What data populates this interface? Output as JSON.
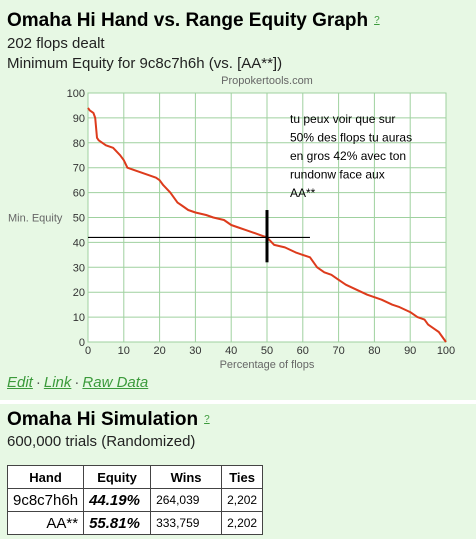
{
  "graph_panel": {
    "title": "Omaha Hi Hand vs. Range Equity Graph",
    "help_label": "?",
    "flops_dealt": "202 flops dealt",
    "subtitle": "Minimum Equity for 9c8c7h6h (vs. [AA**])",
    "links": {
      "edit": "Edit",
      "link": "Link",
      "raw_data": "Raw Data",
      "separator": "·"
    }
  },
  "chart_data": {
    "type": "line",
    "watermark": "Propokertools.com",
    "xlabel": "Percentage of flops",
    "ylabel": "Min. Equity",
    "xlim": [
      0,
      100
    ],
    "ylim": [
      0,
      100
    ],
    "xticks": [
      0,
      10,
      20,
      30,
      40,
      50,
      60,
      70,
      80,
      90,
      100
    ],
    "yticks": [
      0,
      10,
      20,
      30,
      40,
      50,
      60,
      70,
      80,
      90,
      100
    ],
    "grid": true,
    "line_color": "#dd3b1c",
    "series": [
      {
        "x": [
          0,
          0.5,
          1.5,
          2,
          2.5,
          3,
          5,
          7,
          9,
          10,
          11,
          13,
          15,
          17,
          19,
          20,
          21,
          23,
          25,
          26,
          27,
          28,
          30,
          33,
          35,
          38,
          40,
          42,
          44,
          46,
          48,
          50,
          52,
          55,
          58,
          60,
          62,
          64,
          66,
          68,
          70,
          72,
          75,
          78,
          80,
          82,
          85,
          87,
          90,
          92,
          94,
          95,
          96,
          97,
          98,
          99,
          100
        ],
        "y": [
          94,
          93,
          92,
          90,
          82,
          81,
          79,
          78,
          75,
          73,
          70,
          69,
          68,
          67,
          66,
          65,
          63,
          60,
          56,
          55,
          54,
          53,
          52,
          51,
          50,
          49,
          47,
          46,
          45,
          44,
          43,
          42,
          39,
          38,
          36,
          35,
          34,
          30,
          28,
          27,
          25,
          23,
          21,
          19,
          18,
          17,
          15,
          14,
          12,
          10,
          9,
          7,
          6,
          5,
          4,
          2,
          0
        ]
      }
    ],
    "annotation": {
      "text": "tu peux voir que sur 50% des flops tu auras en gros 42% avec ton rundonw face aux AA**",
      "lines": [
        "tu peux voir que sur",
        "50% des flops tu auras",
        "en gros 42% avec ton",
        "rundonw face aux",
        "AA**"
      ],
      "horizontal_marker": {
        "y": 42,
        "x_from": 0,
        "x_to": 62
      },
      "vertical_marker": {
        "x": 50,
        "y_from": 32,
        "y_to": 53
      }
    }
  },
  "simulation_panel": {
    "title": "Omaha Hi Simulation",
    "help_label": "?",
    "trials": "600,000 trials (Randomized)",
    "table": {
      "headers": [
        "Hand",
        "Equity",
        "Wins",
        "Ties"
      ],
      "rows": [
        {
          "hand": "9c8c7h6h",
          "equity": "44.19%",
          "wins": "264,039",
          "ties": "2,202"
        },
        {
          "hand": "AA**",
          "equity": "55.81%",
          "wins": "333,759",
          "ties": "2,202"
        }
      ]
    }
  }
}
